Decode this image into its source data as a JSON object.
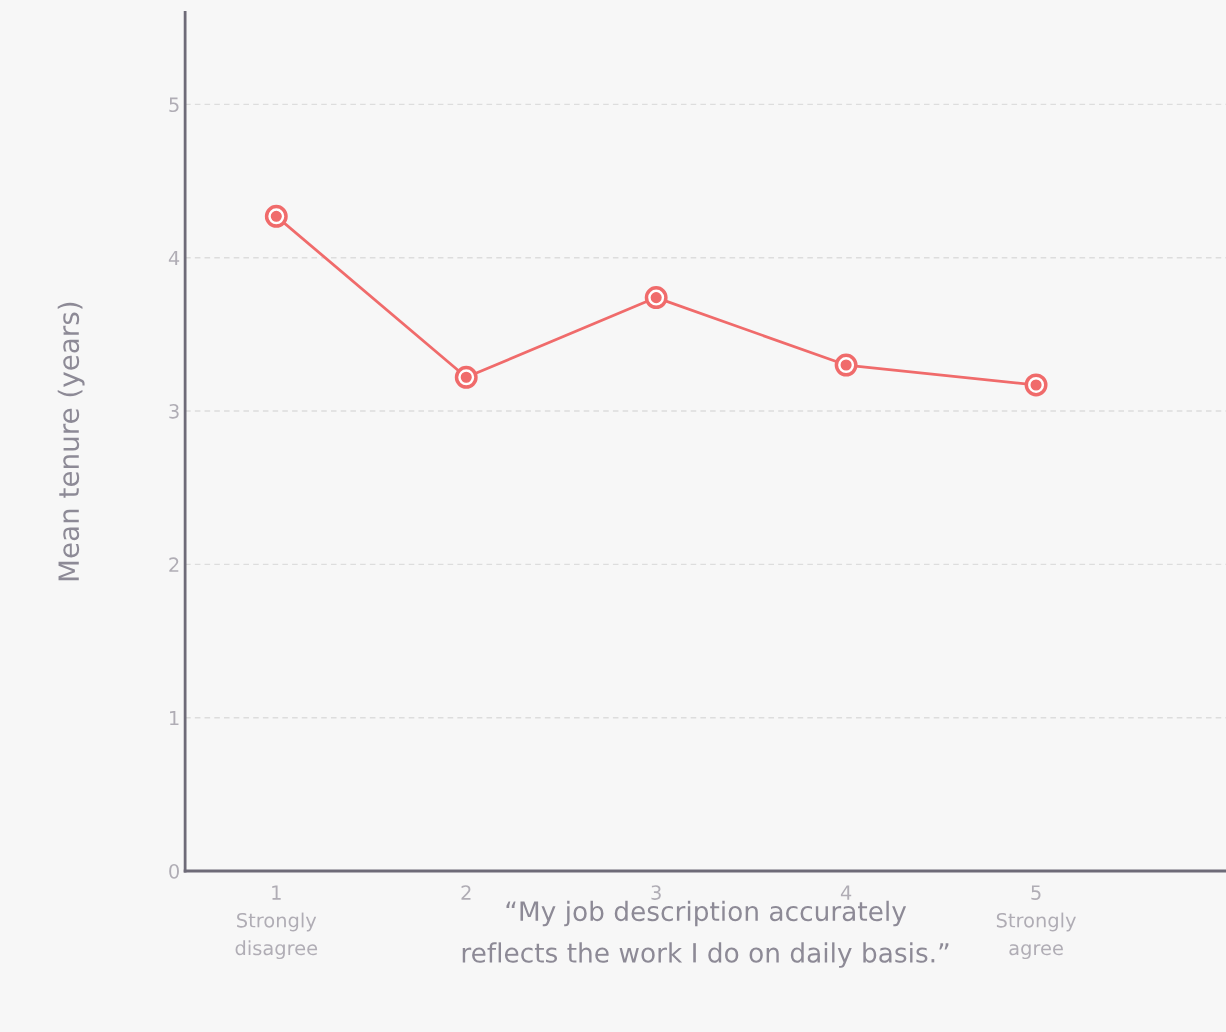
{
  "chart_data": {
    "type": "line",
    "categories": [
      "1\nStrongly\ndisagree",
      "2",
      "3",
      "4",
      "5\nStrongly\nagree"
    ],
    "series": [
      {
        "color": "#f06b6b",
        "values": [
          4.27,
          3.22,
          3.74,
          3.3,
          3.17
        ]
      }
    ],
    "xlabel": "“My job description accurately\nreflects the work I do on daily basis.”",
    "ylabel": "Mean tenure (years)",
    "ylim": [
      0,
      5.6
    ],
    "yticks": [
      0,
      1,
      2,
      3,
      4,
      5
    ],
    "grid": "y",
    "marker": "circle",
    "line_style": "solid",
    "legend": false
  }
}
